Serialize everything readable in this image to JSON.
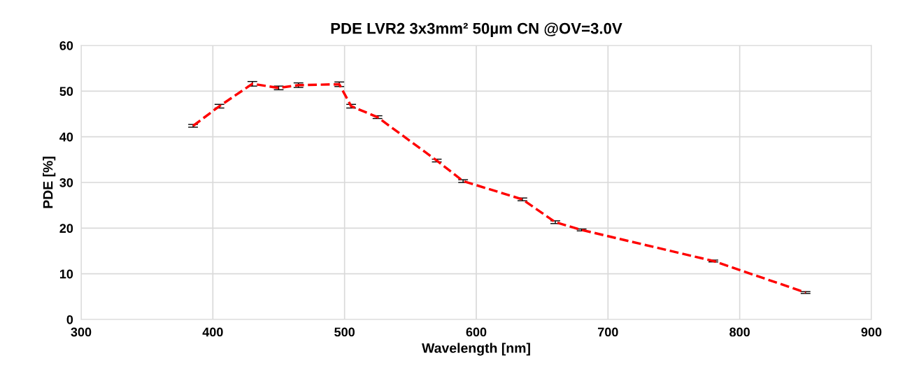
{
  "chart_data": {
    "type": "line",
    "title": "PDE LVR2 3x3mm² 50µm CN @OV=3.0V",
    "xlabel": "Wavelength [nm]",
    "ylabel": "PDE [%]",
    "x": [
      385,
      405,
      430,
      450,
      465,
      496,
      505,
      525,
      570,
      590,
      635,
      660,
      680,
      780,
      850
    ],
    "series": [
      {
        "color": "#ff0000",
        "values": [
          42.4,
          46.7,
          51.6,
          50.7,
          51.3,
          51.5,
          46.7,
          44.3,
          34.8,
          30.3,
          26.3,
          21.3,
          19.6,
          12.8,
          5.9
        ],
        "errors": [
          0.3,
          0.4,
          0.5,
          0.4,
          0.5,
          0.5,
          0.4,
          0.3,
          0.3,
          0.3,
          0.3,
          0.3,
          0.2,
          0.2,
          0.2
        ]
      }
    ],
    "xlim": [
      300,
      900
    ],
    "xticks": [
      300,
      400,
      500,
      600,
      700,
      800,
      900
    ],
    "ylim": [
      0,
      60
    ],
    "yticks": [
      0,
      10,
      20,
      30,
      40,
      50,
      60
    ],
    "grid": true,
    "legend": false,
    "marker": "none",
    "line_style": "dashed"
  }
}
